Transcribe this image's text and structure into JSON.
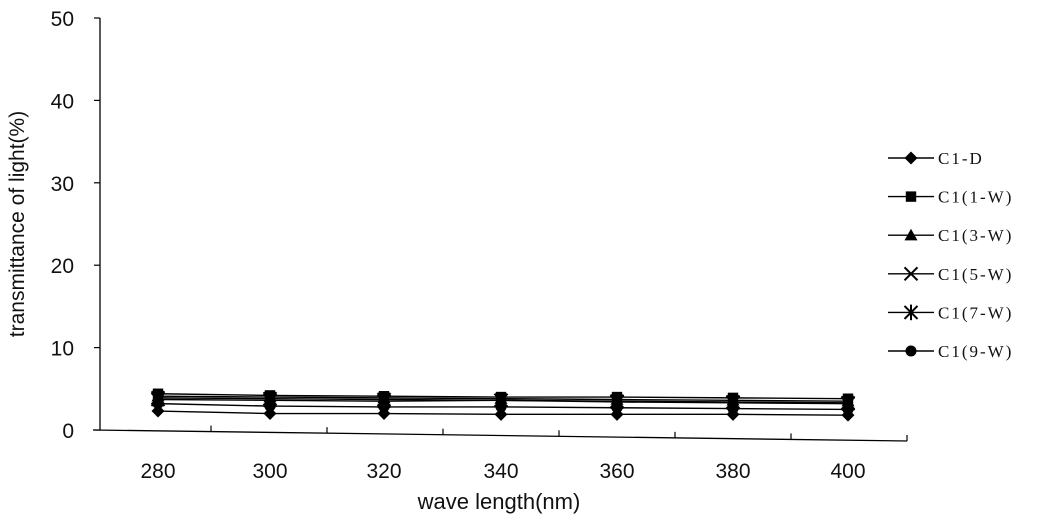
{
  "chart_data": {
    "type": "line",
    "title": "",
    "xlabel": "wave length(nm)",
    "ylabel": "transmittance of light(%)",
    "x": [
      280,
      300,
      320,
      340,
      360,
      380,
      400
    ],
    "x_tick_labels": [
      "280",
      "300",
      "320",
      "340",
      "360",
      "380",
      "400"
    ],
    "y_tick_labels": [
      "0",
      "10",
      "20",
      "30",
      "40",
      "50"
    ],
    "ylim": [
      0,
      50
    ],
    "grid": false,
    "legend_position": "right",
    "series": [
      {
        "name": "C1-D",
        "marker": "diamond",
        "values": [
          2.3,
          2.0,
          2.0,
          1.9,
          1.9,
          1.9,
          1.8
        ]
      },
      {
        "name": "C1(1-W)",
        "marker": "square",
        "values": [
          4.4,
          4.2,
          4.1,
          4.0,
          4.0,
          3.9,
          3.8
        ]
      },
      {
        "name": "C1(3-W)",
        "marker": "triangle",
        "values": [
          4.1,
          4.0,
          3.9,
          3.8,
          3.7,
          3.6,
          3.5
        ]
      },
      {
        "name": "C1(5-W)",
        "marker": "x",
        "values": [
          3.9,
          3.8,
          3.7,
          3.6,
          3.5,
          3.4,
          3.3
        ]
      },
      {
        "name": "C1(7-W)",
        "marker": "star",
        "values": [
          3.7,
          3.6,
          3.5,
          3.6,
          3.4,
          3.3,
          3.2
        ]
      },
      {
        "name": "C1(9-W)",
        "marker": "circle",
        "values": [
          3.2,
          2.9,
          2.8,
          2.8,
          2.7,
          2.6,
          2.5
        ]
      }
    ]
  }
}
